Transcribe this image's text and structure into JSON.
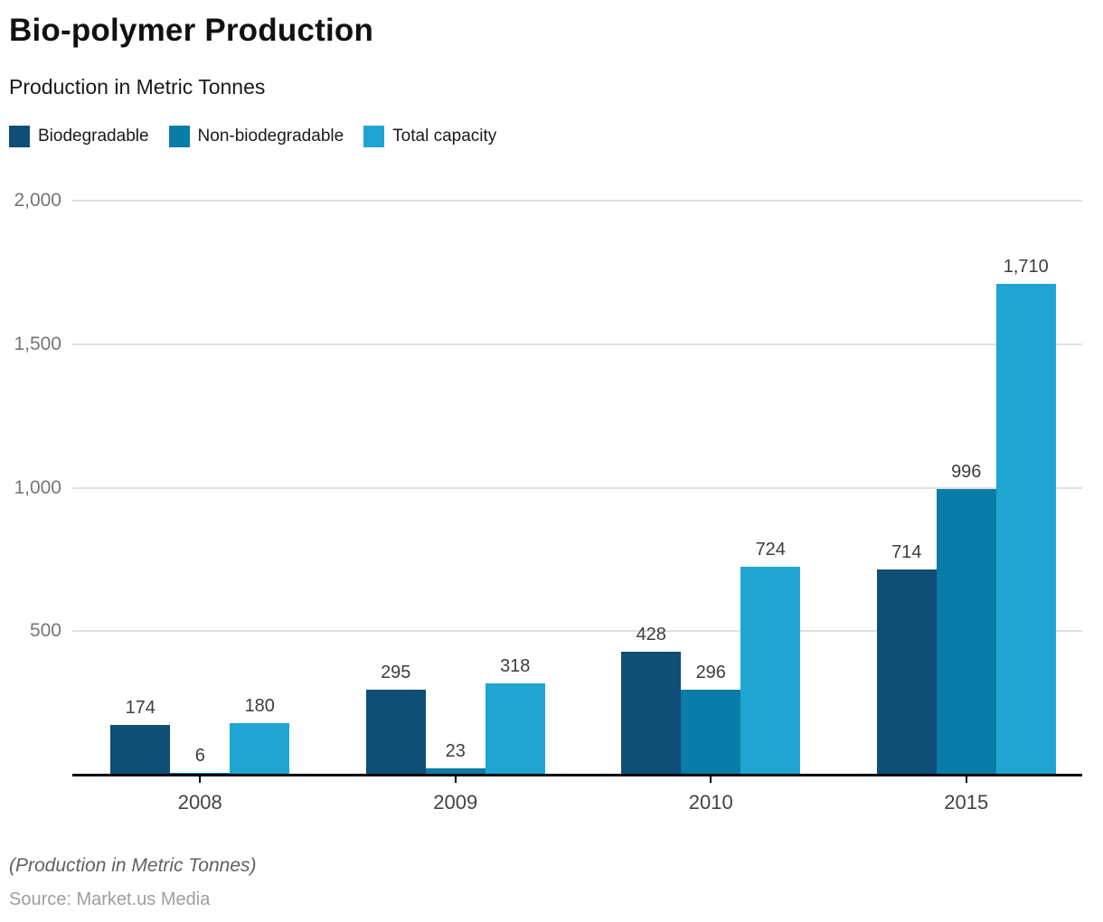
{
  "title": "Bio-polymer Production",
  "subtitle": "Production in Metric Tonnes",
  "legend": {
    "items": [
      {
        "label": "Biodegradable",
        "color": "#0f4e75"
      },
      {
        "label": "Non-biodegradable",
        "color": "#0a7ca8"
      },
      {
        "label": "Total capacity",
        "color": "#20a5d3"
      }
    ]
  },
  "footer": {
    "note": "(Production in Metric Tonnes)",
    "source": "Source: Market.us Media"
  },
  "chart_data": {
    "type": "bar",
    "title": "Bio-polymer Production",
    "subtitle": "Production in Metric Tonnes",
    "categories": [
      "2008",
      "2009",
      "2010",
      "2015"
    ],
    "series": [
      {
        "name": "Biodegradable",
        "color": "#0f4e75",
        "values": [
          174,
          295,
          428,
          714
        ],
        "labels": [
          "174",
          "295",
          "428",
          "714"
        ]
      },
      {
        "name": "Non-biodegradable",
        "color": "#0a7ca8",
        "values": [
          6,
          23,
          296,
          996
        ],
        "labels": [
          "6",
          "23",
          "296",
          "996"
        ]
      },
      {
        "name": "Total capacity",
        "color": "#20a5d3",
        "values": [
          180,
          318,
          724,
          1710
        ],
        "labels": [
          "180",
          "318",
          "724",
          "1,710"
        ]
      }
    ],
    "xlabel": "",
    "ylabel": "",
    "ylim": [
      0,
      2000
    ],
    "yticks": [
      {
        "value": 500,
        "label": "500"
      },
      {
        "value": 1000,
        "label": "1,000"
      },
      {
        "value": 1500,
        "label": "1,500"
      },
      {
        "value": 2000,
        "label": "2,000"
      }
    ],
    "grid": true,
    "legend_position": "top",
    "colors": {
      "grid": "#e0e0e0",
      "axis": "#000000",
      "ytick_text": "#757575",
      "xtick_text": "#424242",
      "value_text": "#3d3d3d"
    }
  }
}
